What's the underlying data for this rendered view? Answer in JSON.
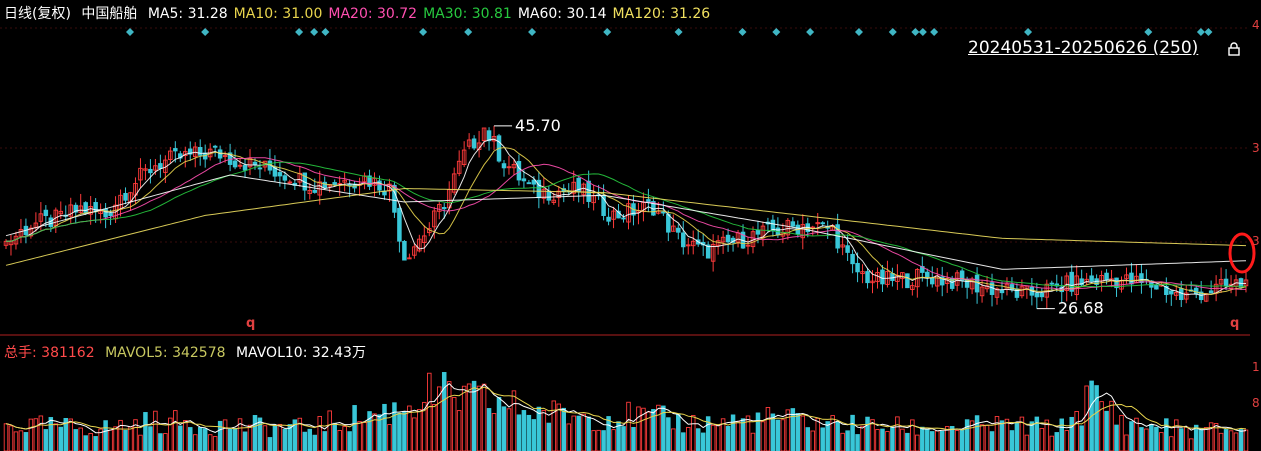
{
  "header": {
    "period": "日线(复权)",
    "stock": "中国船舶",
    "ma": [
      {
        "label": "MA5: 31.28",
        "color": "#ffffff"
      },
      {
        "label": "MA10: 31.00",
        "color": "#e8d44d"
      },
      {
        "label": "MA20: 30.72",
        "color": "#ff4fb0"
      },
      {
        "label": "MA30: 30.81",
        "color": "#27c93f"
      },
      {
        "label": "MA60: 30.14",
        "color": "#ffffff"
      },
      {
        "label": "MA120: 31.26",
        "color": "#f0e060"
      }
    ],
    "range": "20240531-20250626 (250)",
    "lock_icon": "lock-icon"
  },
  "volume_header": {
    "total": {
      "label": "总手: 381162",
      "color": "#ff4a4a"
    },
    "mavol5": {
      "label": "MAVOL5: 342578",
      "color": "#c8c860"
    },
    "mavol10": {
      "label": "MAVOL10: 32.43万",
      "color": "#ffffff"
    }
  },
  "axis_fragments": {
    "top_right": "4",
    "mid_right_1": "3",
    "mid_right_2": "3",
    "vol_1": "1",
    "vol_2": "8"
  },
  "chart_data": {
    "type": "candlestick",
    "price": {
      "high_label": "45.70",
      "low_label": "26.68",
      "anchors": [
        [
          0,
          31.5
        ],
        [
          5,
          32.8
        ],
        [
          10,
          33.2
        ],
        [
          15,
          34.0
        ],
        [
          20,
          33.5
        ],
        [
          23,
          35.0
        ],
        [
          30,
          37.3
        ],
        [
          35,
          37.8
        ],
        [
          42,
          38.2
        ],
        [
          47,
          37.5
        ],
        [
          55,
          36.7
        ],
        [
          62,
          35.8
        ],
        [
          72,
          36.3
        ],
        [
          77,
          35.5
        ],
        [
          80,
          30.5
        ],
        [
          85,
          32.6
        ],
        [
          88,
          34.5
        ],
        [
          92,
          38.0
        ],
        [
          96,
          40.0
        ],
        [
          100,
          37.5
        ],
        [
          106,
          35.2
        ],
        [
          115,
          35.4
        ],
        [
          122,
          33.5
        ],
        [
          130,
          34.2
        ],
        [
          135,
          31.8
        ],
        [
          140,
          30.8
        ],
        [
          150,
          32.0
        ],
        [
          160,
          32.8
        ],
        [
          166,
          32.5
        ],
        [
          170,
          29.5
        ],
        [
          175,
          28.6
        ],
        [
          185,
          29.0
        ],
        [
          195,
          28.3
        ],
        [
          205,
          27.6
        ],
        [
          215,
          28.5
        ],
        [
          222,
          28.8
        ],
        [
          232,
          28.2
        ],
        [
          236,
          27.4
        ],
        [
          241,
          27.9
        ],
        [
          249,
          28.5
        ]
      ],
      "ma120_anchors": [
        [
          0,
          29.8
        ],
        [
          40,
          33.5
        ],
        [
          80,
          35.5
        ],
        [
          120,
          35.2
        ],
        [
          160,
          33.5
        ],
        [
          200,
          31.8
        ],
        [
          249,
          31.26
        ]
      ],
      "ma60_anchors": [
        [
          0,
          32.0
        ],
        [
          45,
          36.5
        ],
        [
          80,
          34.5
        ],
        [
          120,
          35.0
        ],
        [
          160,
          32.5
        ],
        [
          200,
          29.5
        ],
        [
          249,
          30.14
        ]
      ],
      "ylim": [
        25.0,
        48.0
      ]
    },
    "volume": {
      "anchors": [
        [
          0,
          28
        ],
        [
          20,
          25
        ],
        [
          30,
          32
        ],
        [
          45,
          28
        ],
        [
          60,
          25
        ],
        [
          78,
          45
        ],
        [
          85,
          62
        ],
        [
          95,
          55
        ],
        [
          110,
          40
        ],
        [
          125,
          38
        ],
        [
          140,
          30
        ],
        [
          155,
          35
        ],
        [
          170,
          28
        ],
        [
          185,
          25
        ],
        [
          200,
          28
        ],
        [
          212,
          25
        ],
        [
          218,
          60
        ],
        [
          225,
          30
        ],
        [
          240,
          22
        ],
        [
          249,
          25
        ]
      ],
      "ylim": [
        0,
        100
      ]
    },
    "signal_markers_count": 22,
    "signal_markers_index": [
      33,
      53,
      78,
      82,
      85,
      111,
      123,
      140,
      160,
      179,
      196,
      205,
      214,
      227,
      236,
      242,
      244,
      247,
      272,
      304,
      318,
      320
    ]
  }
}
